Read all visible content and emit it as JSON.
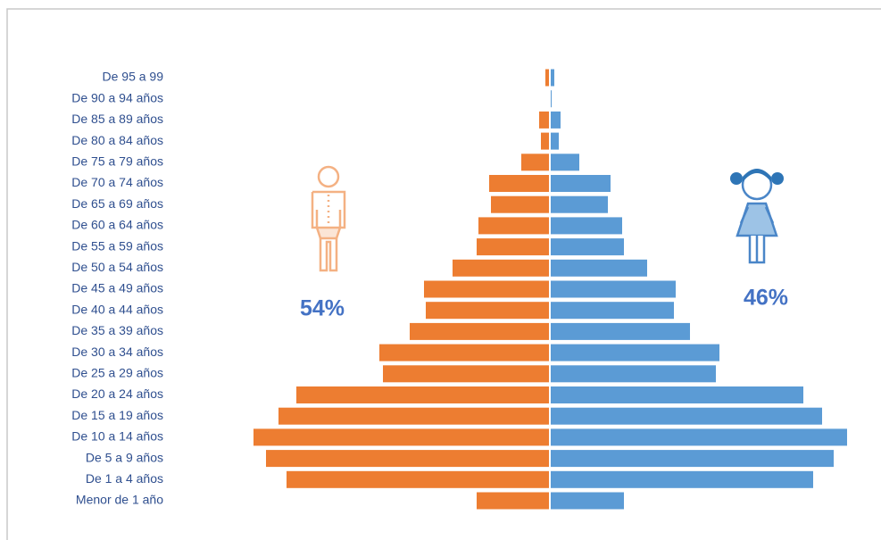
{
  "chart_data": {
    "type": "pyramid",
    "categories": [
      "De 95 a 99",
      "De 90 a 94 años",
      "De 85 a 89 años",
      "De 80 a 84 años",
      "De 75 a 79 años",
      "De 70 a 74 años",
      "De 65 a 69 años",
      "De 60 a 64 años",
      "De 55 a 59 años",
      "De 50 a 54 años",
      "De 45 a 49 años",
      "De 40 a 44 años",
      "De 35 a 39 años",
      "De 30 a 34 años",
      "De 25 a 29 años",
      "De 20 a 24 años",
      "De 15 a 19 años",
      "De 10 a 14 años",
      "De 5 a 9 años",
      "De 1 a 4 años",
      "Menor de 1 año"
    ],
    "series": [
      {
        "color": "#ed7d31",
        "values": [
          4,
          0,
          11,
          9,
          31,
          67,
          65,
          79,
          81,
          108,
          140,
          138,
          156,
          190,
          186,
          283,
          303,
          331,
          317,
          294,
          81
        ]
      },
      {
        "color": "#5b9bd5",
        "values": [
          4,
          1,
          11,
          9,
          32,
          67,
          64,
          80,
          82,
          108,
          140,
          138,
          156,
          189,
          185,
          283,
          304,
          332,
          317,
          294,
          82
        ]
      }
    ],
    "annotations": [
      "54%",
      "46%"
    ]
  }
}
